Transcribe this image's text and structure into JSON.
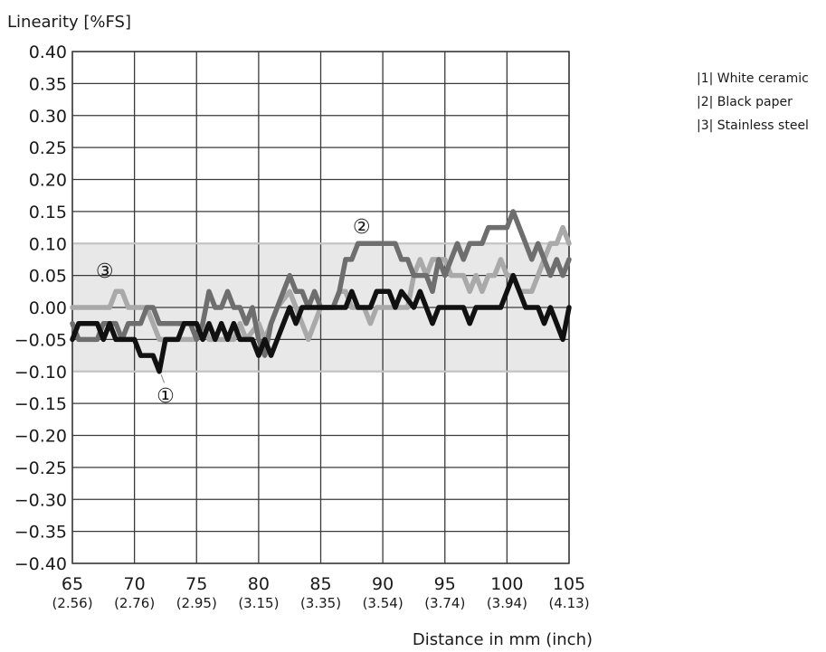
{
  "chart_data": {
    "type": "line",
    "ylabel": "Linearity [%FS]",
    "xlabel": "Distance in mm (inch)",
    "xlim": [
      65,
      105
    ],
    "ylim": [
      -0.4,
      0.4
    ],
    "x_ticks": [
      65,
      70,
      75,
      80,
      85,
      90,
      95,
      100,
      105
    ],
    "x_ticks_secondary": [
      "(2.56)",
      "(2.76)",
      "(2.95)",
      "(3.15)",
      "(3.35)",
      "(3.54)",
      "(3.74)",
      "(3.94)",
      "(4.13)"
    ],
    "y_ticks": [
      0.4,
      0.35,
      0.3,
      0.25,
      0.2,
      0.15,
      0.1,
      0.05,
      0.0,
      -0.05,
      -0.1,
      -0.15,
      -0.2,
      -0.25,
      -0.3,
      -0.35,
      -0.4
    ],
    "y_tick_labels": [
      "0.40",
      "0.35",
      "0.30",
      "0.25",
      "0.20",
      "0.15",
      "0.10",
      "0.05",
      "0.00",
      "−0.05",
      "−0.10",
      "−0.15",
      "−0.20",
      "−0.25",
      "−0.30",
      "−0.35",
      "−0.40"
    ],
    "grid": true,
    "tolerance_band": [
      -0.1,
      0.1
    ],
    "legend_position": "top-right",
    "legend": [
      "|1| White ceramic",
      "|2| Black paper",
      "|3| Stainless steel"
    ],
    "series": [
      {
        "marker": "①",
        "color": "#111111",
        "points": [
          [
            65,
            -0.05
          ],
          [
            65.5,
            -0.025
          ],
          [
            67,
            -0.025
          ],
          [
            67.5,
            -0.05
          ],
          [
            68,
            -0.025
          ],
          [
            68.5,
            -0.05
          ],
          [
            70,
            -0.05
          ],
          [
            70.5,
            -0.075
          ],
          [
            71.5,
            -0.075
          ],
          [
            72,
            -0.1
          ],
          [
            72.5,
            -0.05
          ],
          [
            73.5,
            -0.05
          ],
          [
            74,
            -0.025
          ],
          [
            75,
            -0.025
          ],
          [
            75.5,
            -0.05
          ],
          [
            76,
            -0.025
          ],
          [
            76.5,
            -0.05
          ],
          [
            77,
            -0.025
          ],
          [
            77.5,
            -0.05
          ],
          [
            78,
            -0.025
          ],
          [
            78.5,
            -0.05
          ],
          [
            79.5,
            -0.05
          ],
          [
            80,
            -0.075
          ],
          [
            80.5,
            -0.05
          ],
          [
            81,
            -0.075
          ],
          [
            82,
            -0.025
          ],
          [
            82.5,
            0.0
          ],
          [
            83,
            -0.025
          ],
          [
            83.5,
            0.0
          ],
          [
            87,
            0.0
          ],
          [
            87.5,
            0.025
          ],
          [
            88,
            0.0
          ],
          [
            89,
            0.0
          ],
          [
            89.5,
            0.025
          ],
          [
            90.5,
            0.025
          ],
          [
            91,
            0.0
          ],
          [
            91.5,
            0.025
          ],
          [
            92.5,
            0.0
          ],
          [
            93,
            0.025
          ],
          [
            93.5,
            0.0
          ],
          [
            94,
            -0.025
          ],
          [
            94.5,
            0.0
          ],
          [
            96.5,
            0.0
          ],
          [
            97,
            -0.025
          ],
          [
            97.5,
            0.0
          ],
          [
            99.5,
            0.0
          ],
          [
            100,
            0.025
          ],
          [
            100.5,
            0.05
          ],
          [
            101,
            0.025
          ],
          [
            101.5,
            0.0
          ],
          [
            102.5,
            0.0
          ],
          [
            103,
            -0.025
          ],
          [
            103.5,
            0.0
          ],
          [
            104,
            -0.025
          ],
          [
            104.5,
            -0.05
          ],
          [
            105,
            0.0
          ]
        ]
      },
      {
        "marker": "②",
        "color": "#6e6e6e",
        "points": [
          [
            65,
            -0.025
          ],
          [
            65.5,
            -0.05
          ],
          [
            67,
            -0.05
          ],
          [
            67.5,
            -0.025
          ],
          [
            68.5,
            -0.025
          ],
          [
            69,
            -0.05
          ],
          [
            69.5,
            -0.025
          ],
          [
            70.5,
            -0.025
          ],
          [
            71,
            0.0
          ],
          [
            71.5,
            0.0
          ],
          [
            72,
            -0.025
          ],
          [
            74.5,
            -0.025
          ],
          [
            75,
            -0.05
          ],
          [
            75.5,
            -0.025
          ],
          [
            76,
            0.025
          ],
          [
            76.5,
            0.0
          ],
          [
            77,
            0.0
          ],
          [
            77.5,
            0.025
          ],
          [
            78,
            0.0
          ],
          [
            78.5,
            0.0
          ],
          [
            79,
            -0.025
          ],
          [
            79.5,
            0.0
          ],
          [
            80,
            -0.05
          ],
          [
            80.5,
            -0.075
          ],
          [
            81,
            -0.025
          ],
          [
            82,
            0.025
          ],
          [
            82.5,
            0.05
          ],
          [
            83,
            0.025
          ],
          [
            83.5,
            0.025
          ],
          [
            84,
            0.0
          ],
          [
            84.5,
            0.025
          ],
          [
            85,
            0.0
          ],
          [
            86,
            0.0
          ],
          [
            86.5,
            0.025
          ],
          [
            87,
            0.075
          ],
          [
            87.5,
            0.075
          ],
          [
            88,
            0.1
          ],
          [
            91,
            0.1
          ],
          [
            91.5,
            0.075
          ],
          [
            92,
            0.075
          ],
          [
            92.5,
            0.05
          ],
          [
            93.5,
            0.05
          ],
          [
            94,
            0.025
          ],
          [
            94.5,
            0.075
          ],
          [
            95,
            0.05
          ],
          [
            95.5,
            0.075
          ],
          [
            96,
            0.1
          ],
          [
            96.5,
            0.075
          ],
          [
            97,
            0.1
          ],
          [
            98,
            0.1
          ],
          [
            98.5,
            0.125
          ],
          [
            100,
            0.125
          ],
          [
            100.5,
            0.15
          ],
          [
            101,
            0.125
          ],
          [
            101.5,
            0.1
          ],
          [
            102,
            0.075
          ],
          [
            102.5,
            0.1
          ],
          [
            103,
            0.075
          ],
          [
            103.5,
            0.05
          ],
          [
            104,
            0.075
          ],
          [
            104.5,
            0.05
          ],
          [
            105,
            0.075
          ]
        ]
      },
      {
        "marker": "③",
        "color": "#a9a9a9",
        "points": [
          [
            65,
            0.0
          ],
          [
            68,
            0.0
          ],
          [
            68.5,
            0.025
          ],
          [
            69,
            0.025
          ],
          [
            69.5,
            0.0
          ],
          [
            71,
            0.0
          ],
          [
            71.5,
            -0.025
          ],
          [
            72,
            -0.05
          ],
          [
            75,
            -0.05
          ],
          [
            75.5,
            -0.025
          ],
          [
            76,
            -0.05
          ],
          [
            78,
            -0.05
          ],
          [
            78.5,
            -0.025
          ],
          [
            79,
            -0.05
          ],
          [
            80,
            -0.025
          ],
          [
            80.5,
            -0.05
          ],
          [
            81,
            -0.025
          ],
          [
            81.5,
            0.0
          ],
          [
            82.5,
            0.025
          ],
          [
            83,
            0.0
          ],
          [
            83.5,
            -0.025
          ],
          [
            84,
            -0.05
          ],
          [
            84.5,
            -0.025
          ],
          [
            85,
            0.0
          ],
          [
            86,
            0.0
          ],
          [
            86.5,
            0.025
          ],
          [
            87,
            0.025
          ],
          [
            87.5,
            0.0
          ],
          [
            88.5,
            0.0
          ],
          [
            89,
            -0.025
          ],
          [
            89.5,
            0.0
          ],
          [
            92,
            0.0
          ],
          [
            92.5,
            0.05
          ],
          [
            93,
            0.075
          ],
          [
            93.5,
            0.05
          ],
          [
            94,
            0.075
          ],
          [
            95,
            0.075
          ],
          [
            95.5,
            0.05
          ],
          [
            96.5,
            0.05
          ],
          [
            97,
            0.025
          ],
          [
            97.5,
            0.05
          ],
          [
            98,
            0.025
          ],
          [
            98.5,
            0.05
          ],
          [
            99,
            0.05
          ],
          [
            99.5,
            0.075
          ],
          [
            100,
            0.05
          ],
          [
            100.5,
            0.05
          ],
          [
            101,
            0.025
          ],
          [
            102,
            0.025
          ],
          [
            102.5,
            0.05
          ],
          [
            103,
            0.075
          ],
          [
            103.5,
            0.1
          ],
          [
            104,
            0.1
          ],
          [
            104.5,
            0.125
          ],
          [
            105,
            0.1
          ]
        ]
      }
    ]
  }
}
